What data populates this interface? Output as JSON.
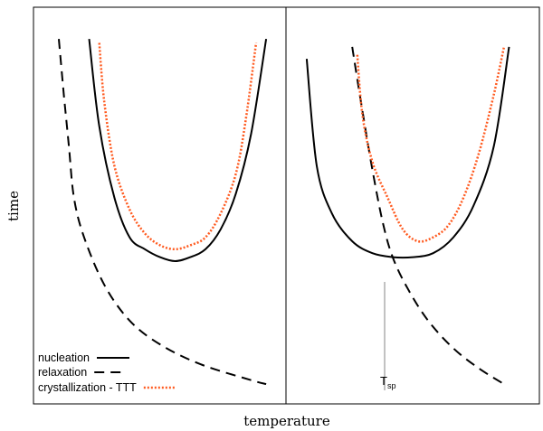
{
  "chart_data": {
    "type": "line",
    "xlabel": "temperature",
    "ylabel": "time",
    "legend_position": "bottom-left",
    "colors": {
      "nucleation": "#000000",
      "relaxation": "#000000",
      "crystallization": "#ff5a1f"
    },
    "legend": [
      {
        "key": "nucleation",
        "label": "nucleation",
        "style": "solid"
      },
      {
        "key": "relaxation",
        "label": "relaxation",
        "style": "dashed"
      },
      {
        "key": "crystallization",
        "label": "crystallization - TTT",
        "style": "dotted"
      }
    ],
    "annotation": {
      "text": "T",
      "subscript": "sp"
    },
    "panels": [
      {
        "name": "left",
        "series": [
          {
            "key": "nucleation",
            "points": [
              [
                0.11,
                0.92
              ],
              [
                0.13,
                0.7
              ],
              [
                0.16,
                0.52
              ],
              [
                0.19,
                0.42
              ],
              [
                0.22,
                0.39
              ],
              [
                0.25,
                0.37
              ],
              [
                0.28,
                0.36
              ],
              [
                0.31,
                0.37
              ],
              [
                0.34,
                0.39
              ],
              [
                0.37,
                0.44
              ],
              [
                0.4,
                0.53
              ],
              [
                0.43,
                0.68
              ],
              [
                0.46,
                0.92
              ]
            ]
          },
          {
            "key": "relaxation",
            "points": [
              [
                0.05,
                0.92
              ],
              [
                0.06,
                0.78
              ],
              [
                0.07,
                0.65
              ],
              [
                0.08,
                0.52
              ],
              [
                0.1,
                0.42
              ],
              [
                0.14,
                0.3
              ],
              [
                0.19,
                0.21
              ],
              [
                0.25,
                0.15
              ],
              [
                0.33,
                0.1
              ],
              [
                0.43,
                0.06
              ],
              [
                0.46,
                0.05
              ]
            ]
          },
          {
            "key": "crystallization",
            "points": [
              [
                0.13,
                0.91
              ],
              [
                0.14,
                0.76
              ],
              [
                0.16,
                0.6
              ],
              [
                0.19,
                0.49
              ],
              [
                0.22,
                0.43
              ],
              [
                0.25,
                0.4
              ],
              [
                0.28,
                0.39
              ],
              [
                0.31,
                0.4
              ],
              [
                0.34,
                0.42
              ],
              [
                0.37,
                0.48
              ],
              [
                0.4,
                0.58
              ],
              [
                0.42,
                0.72
              ],
              [
                0.44,
                0.91
              ]
            ]
          }
        ]
      },
      {
        "name": "right",
        "series": [
          {
            "key": "nucleation",
            "points": [
              [
                0.54,
                0.87
              ],
              [
                0.56,
                0.6
              ],
              [
                0.59,
                0.48
              ],
              [
                0.63,
                0.41
              ],
              [
                0.67,
                0.38
              ],
              [
                0.71,
                0.37
              ],
              [
                0.75,
                0.37
              ],
              [
                0.79,
                0.38
              ],
              [
                0.83,
                0.42
              ],
              [
                0.87,
                0.5
              ],
              [
                0.91,
                0.65
              ],
              [
                0.94,
                0.9
              ]
            ]
          },
          {
            "key": "relaxation",
            "points": [
              [
                0.63,
                0.9
              ],
              [
                0.65,
                0.74
              ],
              [
                0.67,
                0.59
              ],
              [
                0.69,
                0.46
              ],
              [
                0.71,
                0.37
              ],
              [
                0.74,
                0.29
              ],
              [
                0.78,
                0.21
              ],
              [
                0.83,
                0.14
              ],
              [
                0.88,
                0.09
              ],
              [
                0.93,
                0.05
              ]
            ]
          },
          {
            "key": "crystallization",
            "points": [
              [
                0.64,
                0.88
              ],
              [
                0.65,
                0.73
              ],
              [
                0.67,
                0.61
              ],
              [
                0.7,
                0.52
              ],
              [
                0.73,
                0.44
              ],
              [
                0.76,
                0.41
              ],
              [
                0.79,
                0.42
              ],
              [
                0.82,
                0.45
              ],
              [
                0.85,
                0.52
              ],
              [
                0.88,
                0.63
              ],
              [
                0.91,
                0.78
              ],
              [
                0.93,
                0.9
              ]
            ]
          }
        ]
      }
    ]
  }
}
